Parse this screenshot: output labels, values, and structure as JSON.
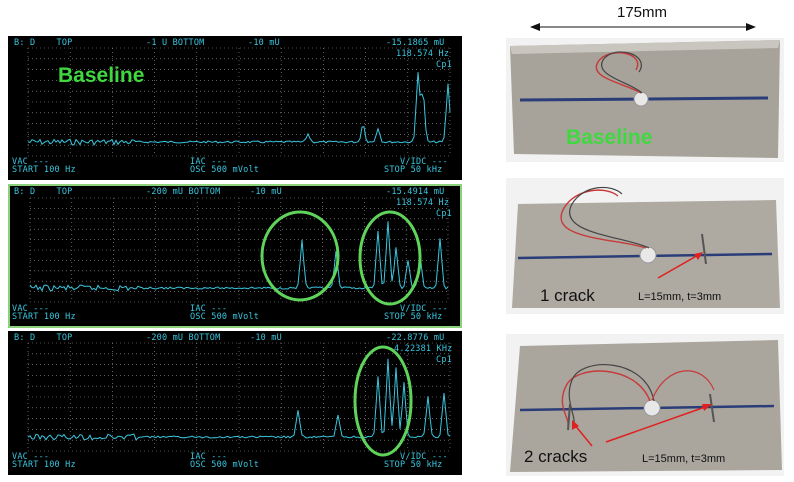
{
  "dimension": {
    "label": "175mm"
  },
  "scopes": [
    {
      "header_left": "B: D    TOP",
      "header_mid": "-1 U BOTTOM",
      "header_mid2": "-10 mU",
      "header_right": "-15.1865 mU",
      "freq": "118.574 Hz",
      "mode": "Cp1",
      "footer_vac": "VAC ---",
      "footer_start": "START 100 Hz",
      "footer_iac": "IAC ---",
      "footer_osc": "OSC 500 mVolt",
      "footer_vidc": "V/IDC ---",
      "footer_stop": "STOP 50 kHz",
      "label": "Baseline"
    },
    {
      "header_left": "B: D    TOP",
      "header_mid": "-200 mU BOTTOM",
      "header_mid2": "-10 mU",
      "header_right": "-15.4914 mU",
      "freq": "118.574 Hz",
      "mode": "Cp1",
      "footer_vac": "VAC ---",
      "footer_start": "START 100 Hz",
      "footer_iac": "IAC ---",
      "footer_osc": "OSC 500 mVolt",
      "footer_vidc": "V/IDC ---",
      "footer_stop": "STOP 50 kHz"
    },
    {
      "header_left": "B: D    TOP",
      "header_mid": "-200 mU BOTTOM",
      "header_mid2": "-10 mU",
      "header_right": "-22.8776 mU",
      "freq": "4.22381 KHz",
      "mode": "Cp1",
      "footer_vac": "VAC ---",
      "footer_start": "START 100 Hz",
      "footer_iac": "IAC ---",
      "footer_osc": "OSC 500 mVolt",
      "footer_vidc": "V/IDC ---",
      "footer_stop": "STOP 50 kHz"
    }
  ],
  "photos": [
    {
      "label": "Baseline"
    },
    {
      "label": "1 crack",
      "spec": "L=15mm, t=3mm"
    },
    {
      "label": "2 cracks",
      "spec": "L=15mm, t=3mm"
    }
  ],
  "colors": {
    "trace": "#39c7df",
    "highlight": "#5fd35a",
    "label_green": "#3fd83f",
    "arrow": "#e02020"
  }
}
